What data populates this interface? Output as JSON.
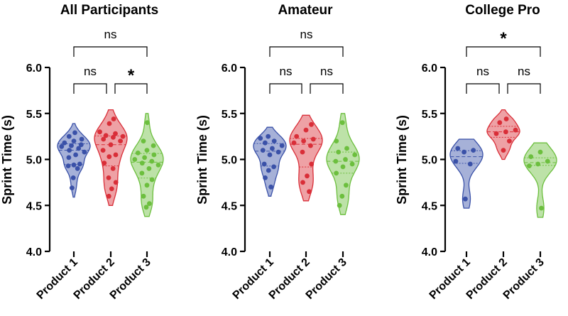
{
  "colors": {
    "product_1": "#3a51a8",
    "product_2": "#d92e38",
    "product_3": "#6cbf3e"
  },
  "chart_data": [
    {
      "type": "violin",
      "title": "All Participants",
      "ylabel": "Sprint Time (s)",
      "ylim": [
        4.0,
        6.0
      ],
      "yticks": [
        "4.0",
        "4.5",
        "5.0",
        "5.5",
        "6.0"
      ],
      "categories": [
        "Product 1",
        "Product 2",
        "Product 3"
      ],
      "series": [
        {
          "name": "Product 1",
          "values": [
            5.29,
            5.25,
            5.22,
            5.2,
            5.18,
            5.16,
            5.15,
            5.14,
            5.12,
            5.1,
            5.08,
            5.05,
            5.02,
            4.95,
            4.94,
            4.93,
            4.9,
            4.8,
            4.69
          ]
        },
        {
          "name": "Product 2",
          "values": [
            5.44,
            5.39,
            5.3,
            5.28,
            5.26,
            5.25,
            5.24,
            5.22,
            5.2,
            5.16,
            5.1,
            5.05,
            5.03,
            4.96,
            4.9,
            4.8,
            4.75,
            4.68,
            4.6
          ]
        },
        {
          "name": "Product 3",
          "values": [
            5.4,
            5.2,
            5.15,
            5.1,
            5.07,
            5.05,
            5.02,
            5.0,
            4.98,
            4.96,
            4.94,
            4.9,
            4.85,
            4.78,
            4.72,
            4.6,
            4.52,
            4.48
          ]
        }
      ],
      "comparisons": [
        {
          "pair": [
            "Product 1",
            "Product 2"
          ],
          "label": "ns"
        },
        {
          "pair": [
            "Product 2",
            "Product 3"
          ],
          "label": "*"
        },
        {
          "pair": [
            "Product 1",
            "Product 3"
          ],
          "label": "ns"
        }
      ]
    },
    {
      "type": "violin",
      "title": "Amateur",
      "ylabel": "Sprint Time (s)",
      "ylim": [
        4.0,
        6.0
      ],
      "yticks": [
        "4.0",
        "4.5",
        "5.0",
        "5.5",
        "6.0"
      ],
      "categories": [
        "Product 1",
        "Product 2",
        "Product 3"
      ],
      "series": [
        {
          "name": "Product 1",
          "values": [
            5.25,
            5.23,
            5.2,
            5.18,
            5.15,
            5.12,
            5.1,
            5.08,
            5.05,
            4.95,
            4.92,
            4.88,
            4.8,
            4.7
          ]
        },
        {
          "name": "Product 2",
          "values": [
            5.38,
            5.32,
            5.25,
            5.22,
            5.2,
            5.18,
            5.15,
            5.08,
            4.95,
            4.82,
            4.75,
            4.65
          ]
        },
        {
          "name": "Product 3",
          "values": [
            5.4,
            5.2,
            5.12,
            5.08,
            5.05,
            5.0,
            4.98,
            4.95,
            4.92,
            4.85,
            4.72,
            4.6,
            4.5
          ]
        }
      ],
      "comparisons": [
        {
          "pair": [
            "Product 1",
            "Product 2"
          ],
          "label": "ns"
        },
        {
          "pair": [
            "Product 2",
            "Product 3"
          ],
          "label": "ns"
        },
        {
          "pair": [
            "Product 1",
            "Product 3"
          ],
          "label": "ns"
        }
      ]
    },
    {
      "type": "violin",
      "title": "College Pro",
      "ylabel": "Sprint Time (s)",
      "ylim": [
        4.0,
        6.0
      ],
      "yticks": [
        "4.0",
        "4.5",
        "5.0",
        "5.5",
        "6.0"
      ],
      "categories": [
        "Product 1",
        "Product 2",
        "Product 3"
      ],
      "series": [
        {
          "name": "Product 1",
          "values": [
            5.12,
            5.1,
            5.08,
            4.98,
            4.95,
            4.57
          ]
        },
        {
          "name": "Product 2",
          "values": [
            5.44,
            5.4,
            5.32,
            5.3,
            5.28,
            5.2,
            5.1
          ]
        },
        {
          "name": "Product 3",
          "values": [
            5.08,
            5.03,
            4.98,
            4.95,
            4.93,
            4.47
          ]
        }
      ],
      "comparisons": [
        {
          "pair": [
            "Product 1",
            "Product 2"
          ],
          "label": "ns"
        },
        {
          "pair": [
            "Product 2",
            "Product 3"
          ],
          "label": "ns"
        },
        {
          "pair": [
            "Product 1",
            "Product 3"
          ],
          "label": "*"
        }
      ]
    }
  ]
}
